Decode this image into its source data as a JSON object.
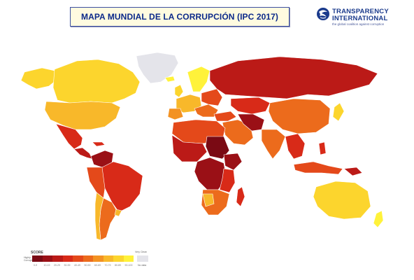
{
  "header": {
    "title": "MAPA MUNDIAL DE LA CORRUPCIÓN  (IPC 2017)"
  },
  "logo": {
    "line1": "TRANSPARENCY",
    "line2": "INTERNATIONAL",
    "tagline": "the global coalition against corruption",
    "icon": "globe-swirl-icon"
  },
  "legend": {
    "title": "SCORE",
    "low_label": "Highly Corrupt",
    "high_label": "Very Clean",
    "nodata_label": "No data",
    "ticks": [
      "0-9",
      "10-19",
      "20-29",
      "30-39",
      "40-49",
      "50-59",
      "60-69",
      "70-79",
      "80-89",
      "90-100"
    ],
    "colors": [
      "#7a0a14",
      "#9a1016",
      "#bb1a17",
      "#d82a18",
      "#e4491a",
      "#ec6b1c",
      "#f39222",
      "#f8b82a",
      "#fcd52d",
      "#fff23a"
    ],
    "nodata_color": "#e4e4ea"
  },
  "map": {
    "ocean_color": "#ffffff",
    "border_color": "#ffffff"
  }
}
